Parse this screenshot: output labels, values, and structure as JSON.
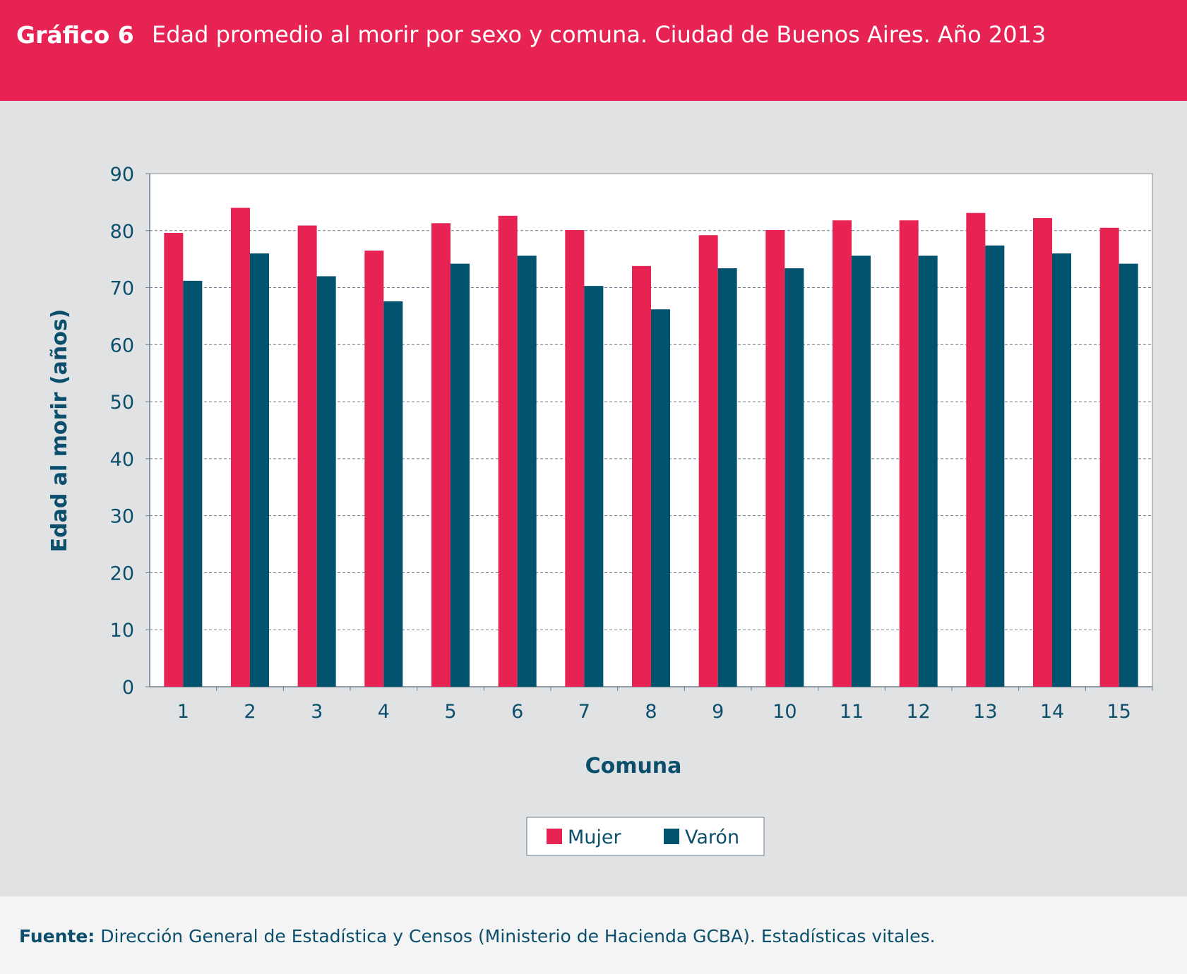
{
  "header": {
    "number": "Gráfico 6",
    "title": "Edad promedio al morir por sexo y comuna. Ciudad de Buenos Aires. Año 2013"
  },
  "footer": {
    "source_label": "Fuente:",
    "source_text": " Dirección General de Estadística y Censos (Ministerio de Hacienda GCBA). Estadísticas vitales."
  },
  "colors": {
    "mujer": "#e62353",
    "varon": "#02536e",
    "header": "#e62353",
    "text": "#0b4f6c"
  },
  "chart_data": {
    "type": "bar",
    "title": "Edad promedio al morir por sexo y comuna. Ciudad de Buenos Aires. Año 2013",
    "xlabel": "Comuna",
    "ylabel": "Edad al morir (años)",
    "ylim": [
      0,
      90
    ],
    "yticks": [
      0,
      10,
      20,
      30,
      40,
      50,
      60,
      70,
      80,
      90
    ],
    "grid": true,
    "legend_position": "bottom-center",
    "categories": [
      "1",
      "2",
      "3",
      "4",
      "5",
      "6",
      "7",
      "8",
      "9",
      "10",
      "11",
      "12",
      "13",
      "14",
      "15"
    ],
    "series": [
      {
        "name": "Mujer",
        "color": "#e62353",
        "values": [
          79.6,
          84.0,
          80.9,
          76.5,
          81.3,
          82.6,
          80.1,
          73.8,
          79.2,
          80.1,
          81.8,
          81.8,
          83.1,
          82.2,
          80.5
        ]
      },
      {
        "name": "Varón",
        "color": "#02536e",
        "values": [
          71.2,
          76.0,
          72.0,
          67.6,
          74.2,
          75.6,
          70.3,
          66.2,
          73.4,
          73.4,
          75.6,
          75.6,
          77.4,
          76.0,
          74.2
        ]
      }
    ]
  }
}
